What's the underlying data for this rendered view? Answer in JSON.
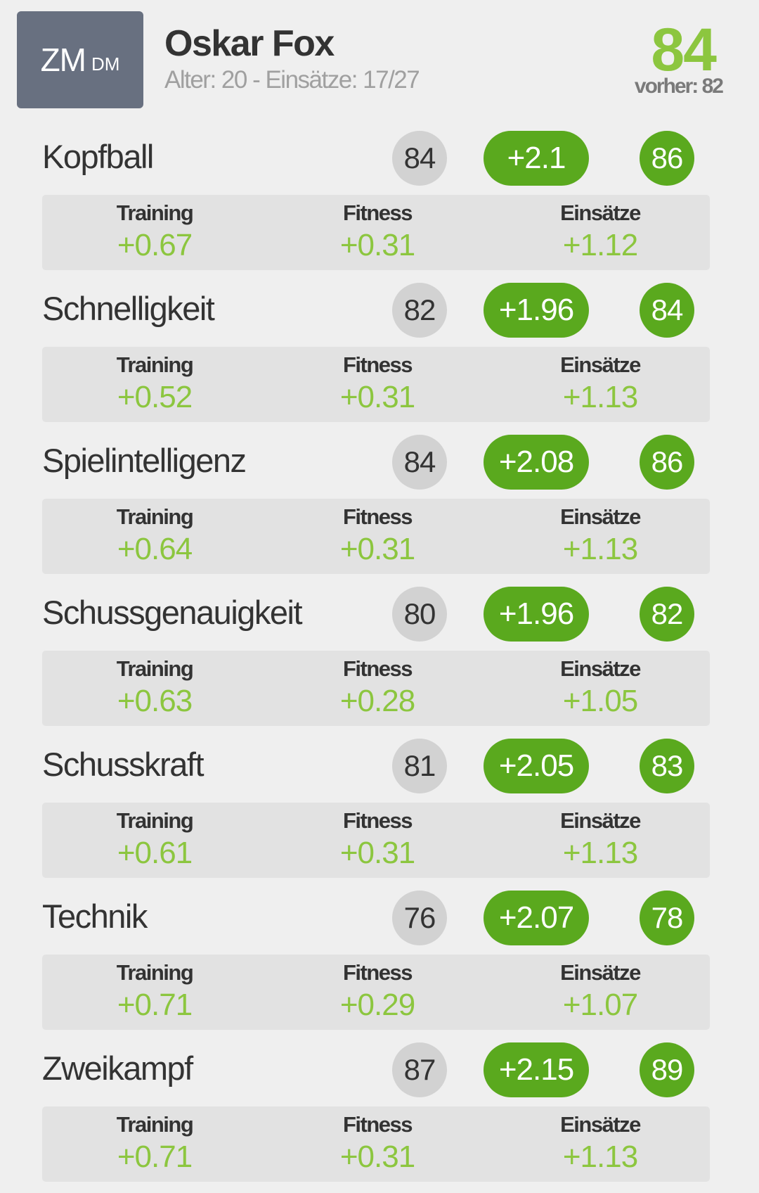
{
  "player": {
    "position_main": "ZM",
    "position_sub": "DM",
    "name": "Oskar Fox",
    "meta": "Alter: 20 - Einsätze: 17/27",
    "overall": "84",
    "previous": "vorher: 82"
  },
  "labels": {
    "training": "Training",
    "fitness": "Fitness",
    "einsaetze": "Einsätze"
  },
  "colors": {
    "accent_green": "#5aa91e",
    "light_green": "#8cc63f",
    "position_box": "#687080"
  },
  "attributes": [
    {
      "name": "Kopfball",
      "current": "84",
      "delta": "+2.1",
      "next": "86",
      "training": "+0.67",
      "fitness": "+0.31",
      "einsaetze": "+1.12"
    },
    {
      "name": "Schnelligkeit",
      "current": "82",
      "delta": "+1.96",
      "next": "84",
      "training": "+0.52",
      "fitness": "+0.31",
      "einsaetze": "+1.13"
    },
    {
      "name": "Spielintelligenz",
      "current": "84",
      "delta": "+2.08",
      "next": "86",
      "training": "+0.64",
      "fitness": "+0.31",
      "einsaetze": "+1.13"
    },
    {
      "name": "Schussgenauigkeit",
      "current": "80",
      "delta": "+1.96",
      "next": "82",
      "training": "+0.63",
      "fitness": "+0.28",
      "einsaetze": "+1.05"
    },
    {
      "name": "Schusskraft",
      "current": "81",
      "delta": "+2.05",
      "next": "83",
      "training": "+0.61",
      "fitness": "+0.31",
      "einsaetze": "+1.13"
    },
    {
      "name": "Technik",
      "current": "76",
      "delta": "+2.07",
      "next": "78",
      "training": "+0.71",
      "fitness": "+0.29",
      "einsaetze": "+1.07"
    },
    {
      "name": "Zweikampf",
      "current": "87",
      "delta": "+2.15",
      "next": "89",
      "training": "+0.71",
      "fitness": "+0.31",
      "einsaetze": "+1.13"
    }
  ]
}
